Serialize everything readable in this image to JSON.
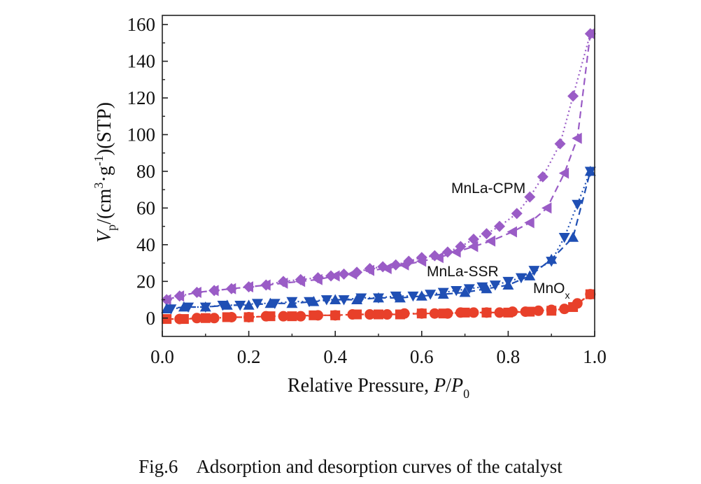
{
  "caption": {
    "number": "Fig.6",
    "text": "Adsorption and desorption curves of the catalyst"
  },
  "chart_data": {
    "type": "line",
    "xlabel": {
      "main": "Relative Pressure, ",
      "italic": "P",
      "slash": "/",
      "italic2": "P",
      "sub": "0"
    },
    "ylabel": {
      "v": "V",
      "vsub": "p",
      "pre": "/(cm",
      "sup3": "3",
      "mid": "·g",
      "supm1": "-1",
      "post": ")(STP)"
    },
    "xlim": [
      0.0,
      1.0
    ],
    "ylim": [
      -10,
      165
    ],
    "xticks": [
      "0.0",
      "0.2",
      "0.4",
      "0.6",
      "0.8",
      "1.0"
    ],
    "yticks": [
      "0",
      "20",
      "40",
      "60",
      "80",
      "100",
      "120",
      "140",
      "160"
    ],
    "colors": {
      "cpm": "#9a5cc6",
      "ssr": "#1f4fb4",
      "mnox": "#e8402a"
    },
    "series": [
      {
        "name": "MnLa-CPM",
        "label_main": "MnLa-CPM",
        "label_sub": "",
        "color": "#9a5cc6",
        "adsorption": {
          "x": [
            0.01,
            0.04,
            0.08,
            0.12,
            0.16,
            0.2,
            0.24,
            0.28,
            0.32,
            0.36,
            0.4,
            0.44,
            0.48,
            0.52,
            0.56,
            0.6,
            0.64,
            0.68,
            0.72,
            0.76,
            0.81,
            0.85,
            0.89,
            0.93,
            0.96,
            0.99
          ],
          "y": [
            10,
            12,
            14,
            15,
            16,
            17,
            18,
            19,
            20,
            21,
            23,
            24,
            26,
            27,
            29,
            31,
            33,
            36,
            39,
            42,
            47,
            52,
            60,
            79,
            98,
            155
          ]
        },
        "desorption": {
          "x": [
            0.99,
            0.95,
            0.92,
            0.88,
            0.85,
            0.82,
            0.78,
            0.75,
            0.72,
            0.69,
            0.66,
            0.63,
            0.6,
            0.57,
            0.54,
            0.51,
            0.48,
            0.45,
            0.42,
            0.39,
            0.36,
            0.32,
            0.28,
            0.24,
            0.2,
            0.16,
            0.12,
            0.08,
            0.04,
            0.01
          ],
          "y": [
            155,
            121,
            95,
            77,
            66,
            57,
            50,
            46,
            43,
            39,
            36,
            34,
            33,
            31,
            29,
            28,
            27,
            25,
            24,
            23,
            22,
            21,
            20,
            18,
            17,
            16,
            15,
            14,
            12,
            10
          ]
        }
      },
      {
        "name": "MnLa-SSR",
        "label_main": "MnLa-SSR",
        "label_sub": "",
        "color": "#1f4fb4",
        "adsorption": {
          "x": [
            0.01,
            0.05,
            0.1,
            0.15,
            0.2,
            0.25,
            0.3,
            0.35,
            0.4,
            0.45,
            0.5,
            0.55,
            0.6,
            0.65,
            0.7,
            0.75,
            0.8,
            0.85,
            0.9,
            0.95,
            0.99
          ],
          "y": [
            5,
            6,
            6,
            7,
            7,
            8,
            8,
            9,
            10,
            10,
            11,
            11,
            12,
            13,
            14,
            16,
            18,
            23,
            32,
            44,
            80
          ]
        },
        "desorption": {
          "x": [
            0.99,
            0.96,
            0.93,
            0.9,
            0.86,
            0.83,
            0.8,
            0.77,
            0.74,
            0.71,
            0.68,
            0.65,
            0.62,
            0.58,
            0.54,
            0.5,
            0.46,
            0.42,
            0.38,
            0.34,
            0.3,
            0.26,
            0.22,
            0.18,
            0.14,
            0.1,
            0.06,
            0.02
          ],
          "y": [
            80,
            62,
            44,
            31,
            26,
            22,
            20,
            18,
            17,
            16,
            15,
            14,
            13,
            12,
            12,
            11,
            11,
            10,
            10,
            9,
            9,
            8,
            8,
            7,
            7,
            6,
            6,
            5
          ]
        }
      },
      {
        "name": "MnO",
        "label_main": "MnO",
        "label_sub": "x",
        "color": "#e8402a",
        "adsorption": {
          "x": [
            0.01,
            0.05,
            0.1,
            0.15,
            0.2,
            0.25,
            0.3,
            0.35,
            0.4,
            0.45,
            0.5,
            0.55,
            0.6,
            0.65,
            0.7,
            0.75,
            0.8,
            0.85,
            0.9,
            0.95,
            0.99
          ],
          "y": [
            -0.5,
            -0.5,
            0,
            0.5,
            0.5,
            1,
            1,
            1.5,
            1.5,
            2,
            2,
            2,
            2.5,
            2.5,
            3,
            3,
            3,
            3.5,
            4,
            6,
            13
          ]
        },
        "desorption": {
          "x": [
            0.99,
            0.96,
            0.93,
            0.9,
            0.87,
            0.84,
            0.81,
            0.78,
            0.75,
            0.72,
            0.69,
            0.66,
            0.63,
            0.6,
            0.56,
            0.52,
            0.48,
            0.44,
            0.4,
            0.36,
            0.32,
            0.28,
            0.24,
            0.2,
            0.16,
            0.12,
            0.08,
            0.04
          ],
          "y": [
            13,
            8,
            5,
            4.5,
            4,
            3.5,
            3.5,
            3,
            3,
            3,
            3,
            2.5,
            2.5,
            2.5,
            2.5,
            2,
            2,
            2,
            1.5,
            1.5,
            1,
            1,
            1,
            0.5,
            0.5,
            0,
            0,
            -0.5
          ]
        }
      }
    ]
  }
}
